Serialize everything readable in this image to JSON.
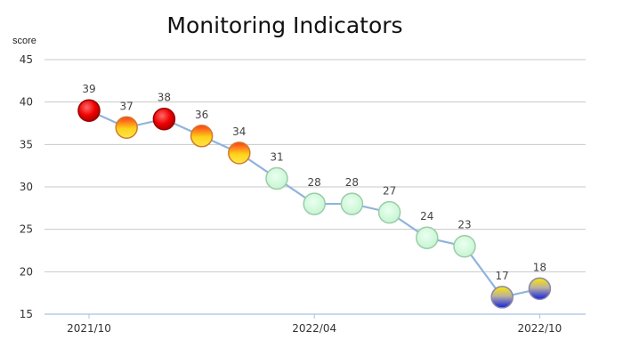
{
  "chart_data": {
    "type": "line",
    "title": "Monitoring Indicators",
    "ylabel": "score",
    "xlabel": "",
    "ylim": [
      15,
      45
    ],
    "yticks": [
      15,
      20,
      25,
      30,
      35,
      40,
      45
    ],
    "grid": true,
    "legend": "none",
    "x_tick_labels": [
      {
        "label": "2021/10",
        "index": 0
      },
      {
        "label": "2022/04",
        "index": 6
      },
      {
        "label": "2022/10",
        "index": 12
      }
    ],
    "series": [
      {
        "values": [
          39,
          37,
          38,
          36,
          34,
          31,
          28,
          28,
          27,
          24,
          23,
          17,
          18
        ],
        "marker_styles": [
          "red",
          "orange",
          "red",
          "orange",
          "orange",
          "green",
          "green",
          "green",
          "green",
          "green",
          "green",
          "blue",
          "blue"
        ]
      }
    ],
    "colors": {
      "line": "#8fb4dd",
      "grid": "#c8c8c8",
      "axis": "#a8c4e0"
    }
  }
}
